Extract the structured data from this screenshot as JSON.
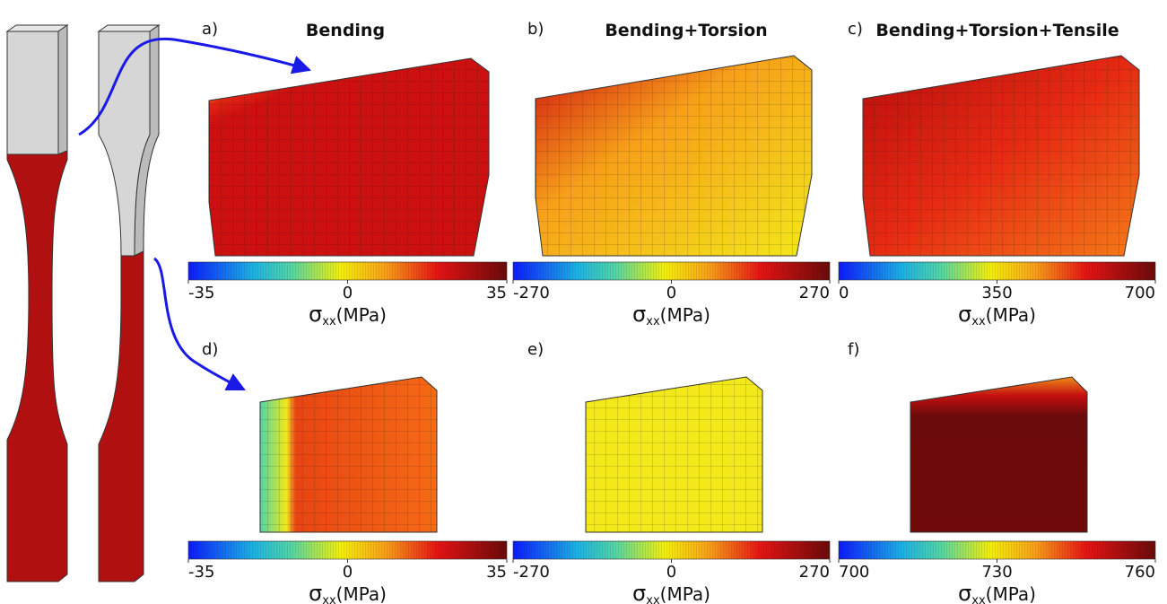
{
  "panels": [
    {
      "label": "a)",
      "title": "Bending",
      "colorbar": {
        "ticks": [
          -35,
          0,
          35
        ],
        "symbol": "σ",
        "subscript": "xx",
        "unit": "(MPa)"
      }
    },
    {
      "label": "b)",
      "title": "Bending+Torsion",
      "colorbar": {
        "ticks": [
          -270,
          0,
          270
        ],
        "symbol": "σ",
        "subscript": "xx",
        "unit": "(MPa)"
      }
    },
    {
      "label": "c)",
      "title": "Bending+Torsion+Tensile",
      "colorbar": {
        "ticks": [
          0,
          350,
          700
        ],
        "symbol": "σ",
        "subscript": "xx",
        "unit": "(MPa)"
      }
    },
    {
      "label": "d)",
      "colorbar": {
        "ticks": [
          -35,
          0,
          35
        ],
        "symbol": "σ",
        "subscript": "xx",
        "unit": "(MPa)"
      }
    },
    {
      "label": "e)",
      "colorbar": {
        "ticks": [
          -270,
          0,
          270
        ],
        "symbol": "σ",
        "subscript": "xx",
        "unit": "(MPa)"
      }
    },
    {
      "label": "f)",
      "colorbar": {
        "ticks": [
          700,
          730,
          760
        ],
        "symbol": "σ",
        "subscript": "xx",
        "unit": "(MPa)"
      }
    }
  ]
}
